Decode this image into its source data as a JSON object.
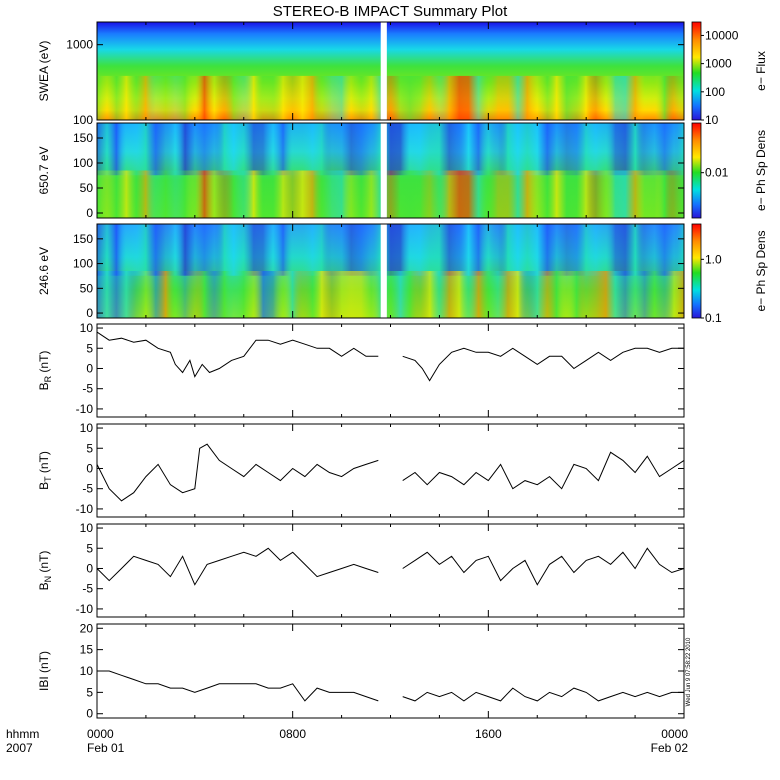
{
  "title": "STEREO-B IMPACT Summary Plot",
  "x_axis": {
    "row1_label": "hhmm",
    "row2_label": "2007",
    "tick_labels": [
      "0000",
      "0800",
      "1600",
      "0000"
    ],
    "tick_hours": [
      0,
      8,
      16,
      24
    ],
    "date_labels": [
      {
        "hour": 0,
        "text": "Feb 01"
      },
      {
        "hour": 24,
        "text": "Feb 02"
      }
    ],
    "range_hours": [
      0,
      24
    ],
    "data_gap_hours": [
      11.6,
      11.85
    ]
  },
  "timestamp": "Wed Jun 9 07:58:22 2010",
  "chart_data": [
    {
      "type": "heatmap",
      "ylabel": "SWEA (eV)",
      "yscale": "log",
      "ylim": [
        100,
        2000
      ],
      "yticks": [
        100,
        1000
      ],
      "ytick_labels": [
        "100",
        "1000"
      ],
      "colorbar": {
        "label": "e− Flux",
        "scale": "log",
        "range": [
          10,
          30000
        ],
        "ticks": [
          10,
          100,
          1000,
          10000
        ],
        "tick_labels": [
          "10",
          "100",
          "1000",
          "10000"
        ]
      }
    },
    {
      "type": "heatmap",
      "ylabel": "650.7 eV",
      "ylim": [
        -10,
        180
      ],
      "yticks": [
        0,
        50,
        100,
        150
      ],
      "ytick_labels": [
        "0",
        "50",
        "100",
        "150"
      ],
      "colorbar": {
        "label": "e− Ph Sp Dens",
        "scale": "log",
        "range": [
          0.0015,
          0.08
        ],
        "ticks": [
          0.01
        ],
        "tick_labels": [
          "0.01"
        ]
      }
    },
    {
      "type": "heatmap",
      "ylabel": "246.6 eV",
      "ylim": [
        -10,
        180
      ],
      "yticks": [
        0,
        50,
        100,
        150
      ],
      "ytick_labels": [
        "0",
        "50",
        "100",
        "150"
      ],
      "colorbar": {
        "label": "e− Ph Sp Dens",
        "scale": "log",
        "range": [
          0.1,
          4
        ],
        "ticks": [
          0.1,
          1.0
        ],
        "tick_labels": [
          "0.1",
          "1.0"
        ]
      }
    },
    {
      "type": "line",
      "ylabel_main": "B",
      "ylabel_sub": "R",
      "ylabel_unit": " (nT)",
      "ylim": [
        -12,
        11
      ],
      "yticks": [
        -10,
        -5,
        0,
        5,
        10
      ],
      "ytick_labels": [
        "-10",
        "-5",
        "0",
        "5",
        "10"
      ],
      "x": [
        0,
        0.5,
        1,
        1.5,
        2,
        2.5,
        3,
        3.2,
        3.5,
        3.8,
        4,
        4.3,
        4.6,
        5,
        5.5,
        6,
        6.5,
        7,
        7.5,
        8,
        8.5,
        9,
        9.5,
        10,
        10.5,
        11,
        11.5,
        12,
        12.5,
        13,
        13.3,
        13.6,
        14,
        14.5,
        15,
        15.5,
        16,
        16.5,
        17,
        17.5,
        18,
        18.5,
        19,
        19.5,
        20,
        20.5,
        21,
        21.5,
        22,
        22.5,
        23,
        23.5,
        24
      ],
      "y": [
        9,
        7,
        7.5,
        6.5,
        7,
        5,
        4,
        1,
        -1,
        2,
        -2,
        1,
        -1,
        0,
        2,
        3,
        7,
        7,
        6,
        7,
        6,
        5,
        5,
        3,
        5,
        3,
        3,
        null,
        3,
        2,
        0,
        -3,
        1,
        4,
        5,
        4,
        4,
        3,
        5,
        3,
        1,
        3,
        3,
        0,
        2,
        4,
        2,
        4,
        5,
        5,
        4,
        5,
        5
      ]
    },
    {
      "type": "line",
      "ylabel_main": "B",
      "ylabel_sub": "T",
      "ylabel_unit": " (nT)",
      "ylim": [
        -12,
        11
      ],
      "yticks": [
        -10,
        -5,
        0,
        5,
        10
      ],
      "ytick_labels": [
        "-10",
        "-5",
        "0",
        "5",
        "10"
      ],
      "x": [
        0,
        0.5,
        1,
        1.5,
        2,
        2.5,
        3,
        3.5,
        4,
        4.2,
        4.5,
        5,
        5.5,
        6,
        6.5,
        7,
        7.5,
        8,
        8.5,
        9,
        9.5,
        10,
        10.5,
        11,
        11.5,
        12,
        12.5,
        13,
        13.5,
        14,
        14.5,
        15,
        15.5,
        16,
        16.5,
        17,
        17.5,
        18,
        18.5,
        19,
        19.5,
        20,
        20.5,
        21,
        21.5,
        22,
        22.5,
        23,
        23.5,
        24
      ],
      "y": [
        1,
        -5,
        -8,
        -6,
        -2,
        1,
        -4,
        -6,
        -5,
        5,
        6,
        2,
        0,
        -2,
        1,
        -1,
        -3,
        0,
        -2,
        1,
        -1,
        -2,
        0,
        1,
        2,
        null,
        -3,
        -1,
        -4,
        -1,
        -2,
        -4,
        -1,
        -3,
        1,
        -5,
        -3,
        -4,
        -2,
        -5,
        1,
        0,
        -3,
        4,
        2,
        -1,
        3,
        -2,
        0,
        2
      ]
    },
    {
      "type": "line",
      "ylabel_main": "B",
      "ylabel_sub": "N",
      "ylabel_unit": " (nT)",
      "ylim": [
        -12,
        11
      ],
      "yticks": [
        -10,
        -5,
        0,
        5,
        10
      ],
      "ytick_labels": [
        "-10",
        "-5",
        "0",
        "5",
        "10"
      ],
      "x": [
        0,
        0.5,
        1,
        1.5,
        2,
        2.5,
        3,
        3.5,
        4,
        4.5,
        5,
        5.5,
        6,
        6.5,
        7,
        7.5,
        8,
        8.5,
        9,
        9.5,
        10,
        10.5,
        11,
        11.5,
        12,
        12.5,
        13,
        13.5,
        14,
        14.5,
        15,
        15.5,
        16,
        16.5,
        17,
        17.5,
        18,
        18.5,
        19,
        19.5,
        20,
        20.5,
        21,
        21.5,
        22,
        22.5,
        23,
        23.5,
        24
      ],
      "y": [
        0,
        -3,
        0,
        3,
        2,
        1,
        -2,
        3,
        -4,
        1,
        2,
        3,
        4,
        3,
        5,
        2,
        4,
        1,
        -2,
        -1,
        0,
        1,
        0,
        -1,
        null,
        0,
        2,
        4,
        1,
        3,
        -1,
        2,
        3,
        -3,
        0,
        2,
        -4,
        1,
        3,
        -1,
        2,
        3,
        1,
        4,
        0,
        5,
        1,
        -1,
        0
      ]
    },
    {
      "type": "line",
      "ylabel": "IBI (nT)",
      "ylim": [
        -1,
        21
      ],
      "yticks": [
        0,
        5,
        10,
        15,
        20
      ],
      "ytick_labels": [
        "0",
        "5",
        "10",
        "15",
        "20"
      ],
      "x": [
        0,
        0.5,
        1,
        1.5,
        2,
        2.5,
        3,
        3.5,
        4,
        4.5,
        5,
        5.5,
        6,
        6.5,
        7,
        7.5,
        8,
        8.5,
        9,
        9.5,
        10,
        10.5,
        11,
        11.5,
        12,
        12.5,
        13,
        13.5,
        14,
        14.5,
        15,
        15.5,
        16,
        16.5,
        17,
        17.5,
        18,
        18.5,
        19,
        19.5,
        20,
        20.5,
        21,
        21.5,
        22,
        22.5,
        23,
        23.5,
        24
      ],
      "y": [
        10,
        10,
        9,
        8,
        7,
        7,
        6,
        6,
        5,
        6,
        7,
        7,
        7,
        7,
        6,
        6,
        7,
        3,
        6,
        5,
        5,
        5,
        4,
        3,
        null,
        4,
        3,
        5,
        4,
        5,
        3,
        5,
        4,
        3,
        6,
        4,
        3,
        5,
        4,
        6,
        5,
        3,
        4,
        5,
        4,
        5,
        4,
        5,
        5
      ]
    }
  ]
}
